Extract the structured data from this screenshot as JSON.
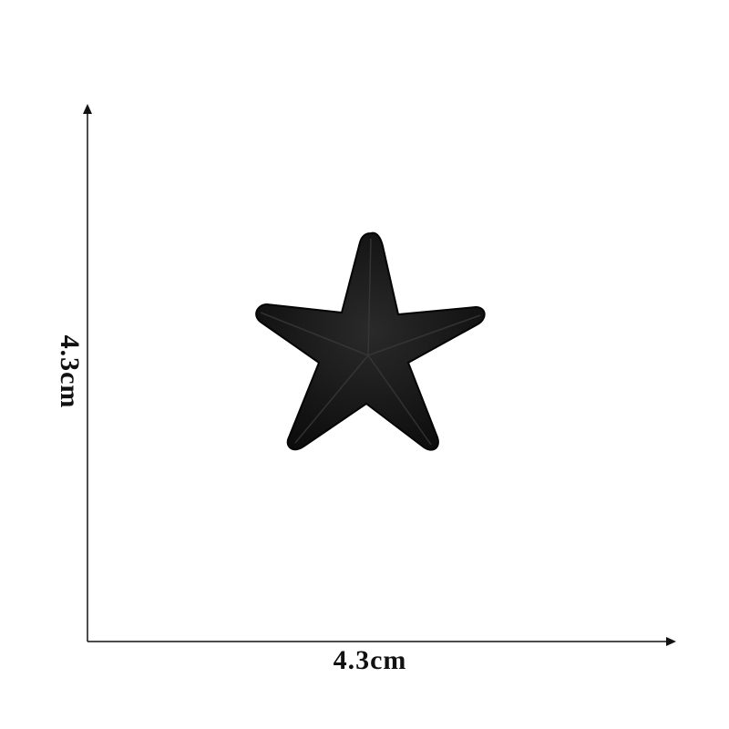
{
  "dimensions": {
    "width_label": "4.3cm",
    "height_label": "4.3cm"
  },
  "product": {
    "shape": "five-point star embroidered patch",
    "color": "#111111"
  },
  "axis_color": "#111111"
}
